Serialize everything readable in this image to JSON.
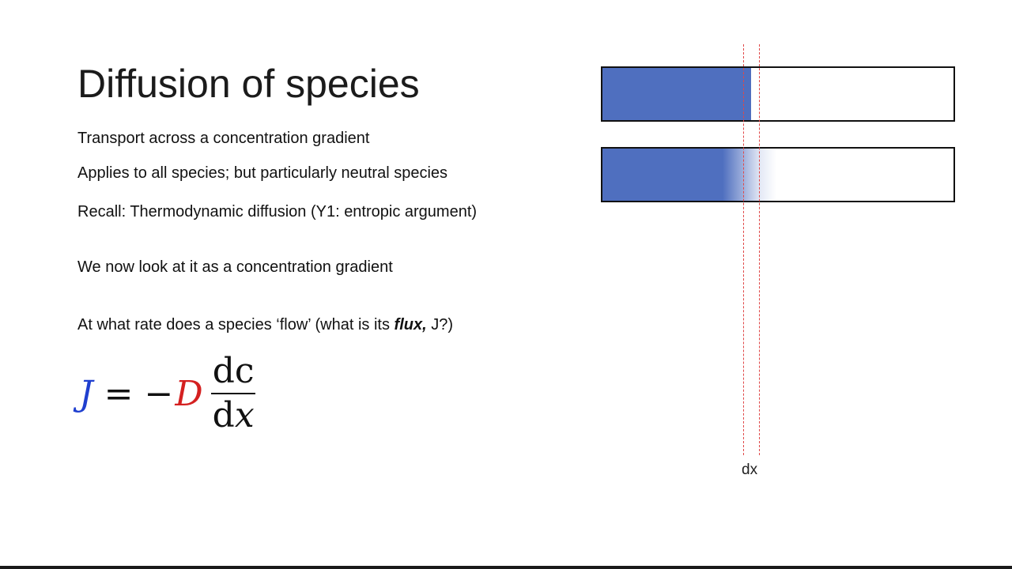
{
  "slide": {
    "title": "Diffusion of species",
    "bullets": [
      "Transport across a concentration gradient",
      "Applies to all species; but particularly neutral species",
      "Recall: Thermodynamic diffusion (Y1: entropic argument)",
      "We now look at it as a concentration gradient"
    ],
    "question": {
      "prefix": "At what rate does a species ‘flow’ (what is its ",
      "flux_word": "flux,",
      "symbol": " J",
      "suffix": "?)"
    }
  },
  "equation": {
    "lhs": "J",
    "equals": "=",
    "minus": "−",
    "coefficient": "D",
    "numerator": "dc",
    "denominator_d": "d",
    "denominator_var": "x",
    "colors": {
      "J": "#1f3fcf",
      "D": "#d42020"
    }
  },
  "diagram": {
    "dx_label": "dx",
    "fill_color": "#4f6fbf",
    "marker_color": "#e04848"
  }
}
